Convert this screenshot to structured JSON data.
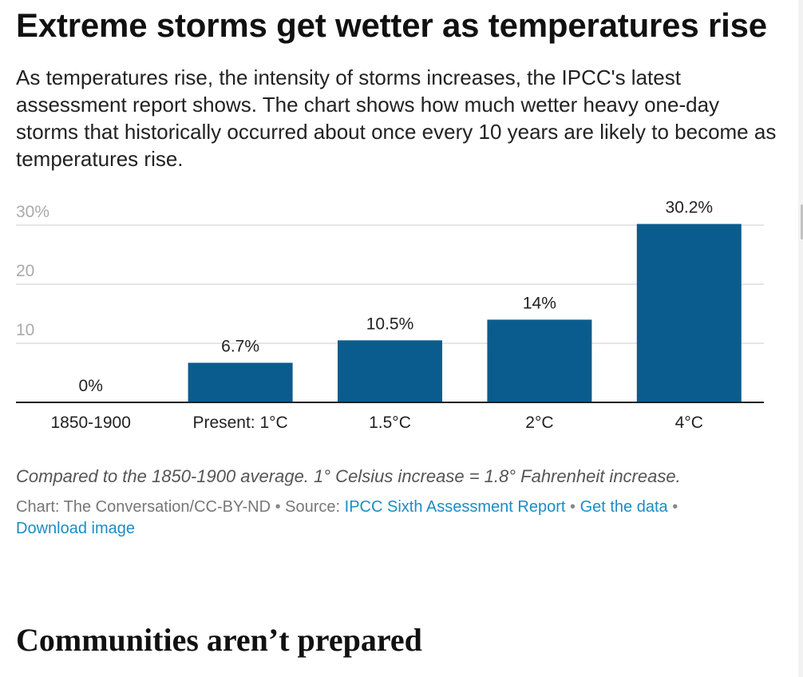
{
  "header": {
    "title": "Extreme storms get wetter as temperatures rise",
    "subtitle": "As temperatures rise, the intensity of storms increases, the IPCC's latest assessment report shows. The chart shows how much wetter heavy one-day storms that historically occurred about once every 10 years are likely to become as temperatures rise."
  },
  "chart_data": {
    "type": "bar",
    "categories": [
      "1850-1900",
      "Present: 1°C",
      "1.5°C",
      "2°C",
      "4°C"
    ],
    "values": [
      0,
      6.7,
      10.5,
      14,
      30.2
    ],
    "data_labels": [
      "0%",
      "6.7%",
      "10.5%",
      "14%",
      "30.2%"
    ],
    "y_ticks": [
      {
        "value": 10,
        "label": "10"
      },
      {
        "value": 20,
        "label": "20"
      },
      {
        "value": 30,
        "label": "30%"
      }
    ],
    "ylim": [
      0,
      30
    ],
    "grid": true,
    "bar_color": "#0b5c8e",
    "title": "",
    "xlabel": "",
    "ylabel": ""
  },
  "footer": {
    "note": "Compared to the 1850-1900 average. 1° Celsius increase = 1.8° Fahrenheit increase.",
    "credit_prefix": "Chart: The Conversation/CC-BY-ND",
    "separator": "•",
    "source_prefix": "Source:",
    "source_link": "IPCC Sixth Assessment Report",
    "get_data_link": "Get the data",
    "download_link": "Download image"
  },
  "article": {
    "section_heading": "Communities aren’t prepared"
  },
  "colors": {
    "link": "#1a8dc4",
    "bar": "#0b5c8e",
    "grid": "#dddddd",
    "axis": "#222222"
  }
}
